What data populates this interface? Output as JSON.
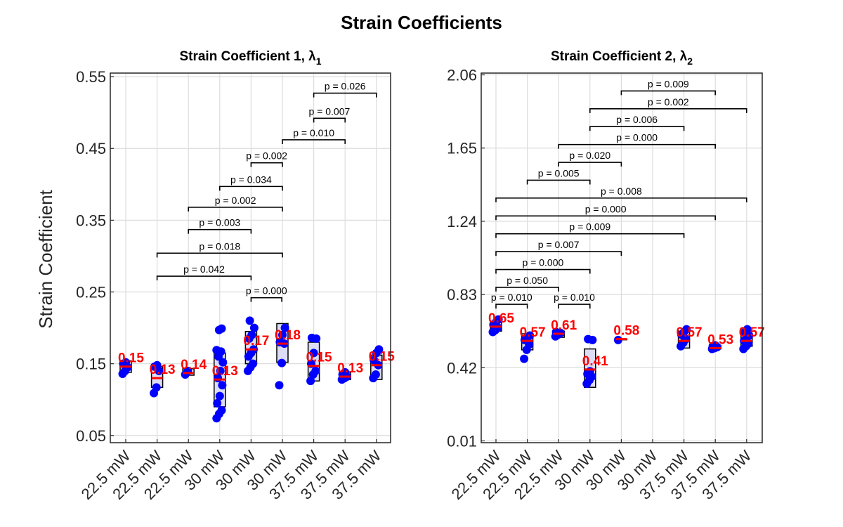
{
  "figure": {
    "title": "Strain Coefficients"
  },
  "chart_data": [
    {
      "type": "box",
      "title": "Strain Coefficient 1, λ",
      "title_subscript": "1",
      "ylabel": "Strain Coefficient",
      "ylim": [
        0.04,
        0.555
      ],
      "yticks": [
        0.05,
        0.15,
        0.25,
        0.35,
        0.45,
        0.55
      ],
      "ytick_labels": [
        "0.05",
        "0.15",
        "0.25",
        "0.35",
        "0.45",
        "0.55"
      ],
      "categories": [
        "22.5 mW",
        "22.5 mW",
        "22.5 mW",
        "30 mW",
        "30 mW",
        "30 mW",
        "37.5 mW",
        "37.5 mW",
        "37.5 mW"
      ],
      "grid": true,
      "groups": [
        {
          "q1": 0.138,
          "median": 0.146,
          "q3": 0.154,
          "label": "0.15",
          "points": [
            0.136,
            0.14,
            0.145,
            0.15,
            0.152
          ]
        },
        {
          "q1": 0.117,
          "median": 0.13,
          "q3": 0.146,
          "label": "0.13",
          "points": [
            0.109,
            0.117,
            0.14,
            0.146,
            0.148
          ]
        },
        {
          "q1": 0.134,
          "median": 0.137,
          "q3": 0.143,
          "label": "0.14",
          "points": [
            0.135,
            0.14
          ]
        },
        {
          "q1": 0.09,
          "median": 0.128,
          "q3": 0.165,
          "label": "0.13",
          "points": [
            0.074,
            0.08,
            0.085,
            0.095,
            0.105,
            0.12,
            0.13,
            0.14,
            0.152,
            0.16,
            0.167,
            0.169,
            0.197,
            0.199
          ]
        },
        {
          "q1": 0.15,
          "median": 0.17,
          "q3": 0.195,
          "label": "0.17",
          "points": [
            0.14,
            0.145,
            0.15,
            0.16,
            0.165,
            0.17,
            0.185,
            0.19,
            0.2,
            0.21
          ]
        },
        {
          "q1": 0.152,
          "median": 0.178,
          "q3": 0.206,
          "label": "0.18",
          "points": [
            0.12,
            0.151,
            0.178,
            0.18,
            0.19,
            0.2
          ]
        },
        {
          "q1": 0.126,
          "median": 0.147,
          "q3": 0.18,
          "label": "0.15",
          "points": [
            0.126,
            0.135,
            0.14,
            0.15,
            0.165,
            0.185,
            0.186
          ]
        },
        {
          "q1": 0.128,
          "median": 0.132,
          "q3": 0.138,
          "label": "0.13",
          "points": [
            0.128,
            0.13,
            0.132,
            0.135,
            0.138
          ]
        },
        {
          "q1": 0.128,
          "median": 0.148,
          "q3": 0.162,
          "label": "0.15",
          "points": [
            0.13,
            0.135,
            0.148,
            0.155,
            0.165,
            0.17
          ]
        }
      ],
      "comparisons": [
        {
          "from": 1,
          "to": 4,
          "y": 0.272,
          "label": "p = 0.042"
        },
        {
          "from": 1,
          "to": 5,
          "y": 0.304,
          "label": "p = 0.018"
        },
        {
          "from": 2,
          "to": 4,
          "y": 0.337,
          "label": "p = 0.003"
        },
        {
          "from": 2,
          "to": 5,
          "y": 0.368,
          "label": "p = 0.002"
        },
        {
          "from": 3,
          "to": 5,
          "y": 0.397,
          "label": "p = 0.034"
        },
        {
          "from": 4,
          "to": 5,
          "y": 0.43,
          "label": "p = 0.002"
        },
        {
          "from": 4,
          "to": 4,
          "y": 0.242,
          "label": "p = 0.000"
        },
        {
          "from": 5,
          "to": 7,
          "y": 0.462,
          "label": "p = 0.010"
        },
        {
          "from": 6,
          "to": 7,
          "y": 0.492,
          "label": "p = 0.007"
        },
        {
          "from": 6,
          "to": 8,
          "y": 0.527,
          "label": "p = 0.026"
        }
      ]
    },
    {
      "type": "box",
      "title": "Strain Coefficient 2, λ",
      "title_subscript": "2",
      "ylabel": "",
      "ylim": [
        0.0,
        2.07
      ],
      "yticks": [
        0.01,
        0.42,
        0.83,
        1.24,
        1.65,
        2.06
      ],
      "ytick_labels": [
        "0.01",
        "0.42",
        "0.83",
        "1.24",
        "1.65",
        "2.06"
      ],
      "categories": [
        "22.5 mW",
        "22.5 mW",
        "22.5 mW",
        "30 mW",
        "30 mW",
        "30 mW",
        "37.5 mW",
        "37.5 mW",
        "37.5 mW"
      ],
      "grid": true,
      "groups": [
        {
          "q1": 0.625,
          "median": 0.65,
          "q3": 0.68,
          "label": "0.65",
          "points": [
            0.62,
            0.63,
            0.645,
            0.66,
            0.675,
            0.69
          ]
        },
        {
          "q1": 0.52,
          "median": 0.57,
          "q3": 0.61,
          "label": "0.57",
          "points": [
            0.47,
            0.52,
            0.55,
            0.575,
            0.59,
            0.6
          ]
        },
        {
          "q1": 0.59,
          "median": 0.61,
          "q3": 0.625,
          "label": "0.61",
          "points": [
            0.595,
            0.605,
            0.615,
            0.62
          ]
        },
        {
          "q1": 0.31,
          "median": 0.41,
          "q3": 0.525,
          "label": "0.41",
          "points": [
            0.33,
            0.35,
            0.37,
            0.385,
            0.4,
            0.575,
            0.58
          ]
        },
        {
          "q1": 0.58,
          "median": 0.58,
          "q3": 0.58,
          "label": "0.58",
          "points": [
            0.575
          ]
        },
        {
          "q1": null,
          "median": null,
          "q3": null,
          "label": "",
          "points": []
        },
        {
          "q1": 0.53,
          "median": 0.57,
          "q3": 0.625,
          "label": "0.57",
          "points": [
            0.54,
            0.56,
            0.58,
            0.605,
            0.62,
            0.635
          ]
        },
        {
          "q1": 0.525,
          "median": 0.53,
          "q3": 0.545,
          "label": "0.53",
          "points": [
            0.525,
            0.53,
            0.535,
            0.54,
            0.545
          ]
        },
        {
          "q1": 0.54,
          "median": 0.57,
          "q3": 0.605,
          "label": "0.57",
          "points": [
            0.525,
            0.54,
            0.555,
            0.57,
            0.585,
            0.6,
            0.62,
            0.635
          ]
        }
      ],
      "comparisons": [
        {
          "from": 0,
          "to": 1,
          "y": 0.775,
          "label": "p = 0.010"
        },
        {
          "from": 2,
          "to": 3,
          "y": 0.775,
          "label": "p = 0.010"
        },
        {
          "from": 0,
          "to": 2,
          "y": 0.87,
          "label": "p = 0.050"
        },
        {
          "from": 0,
          "to": 3,
          "y": 0.97,
          "label": "p = 0.000"
        },
        {
          "from": 0,
          "to": 4,
          "y": 1.07,
          "label": "p = 0.007"
        },
        {
          "from": 0,
          "to": 6,
          "y": 1.17,
          "label": "p = 0.009"
        },
        {
          "from": 0,
          "to": 7,
          "y": 1.27,
          "label": "p = 0.000"
        },
        {
          "from": 0,
          "to": 8,
          "y": 1.37,
          "label": "p = 0.008"
        },
        {
          "from": 1,
          "to": 3,
          "y": 1.47,
          "label": "p = 0.005"
        },
        {
          "from": 2,
          "to": 4,
          "y": 1.57,
          "label": "p = 0.020"
        },
        {
          "from": 2,
          "to": 7,
          "y": 1.67,
          "label": "p = 0.000"
        },
        {
          "from": 3,
          "to": 6,
          "y": 1.77,
          "label": "p = 0.006"
        },
        {
          "from": 3,
          "to": 8,
          "y": 1.87,
          "label": "p = 0.002"
        },
        {
          "from": 4,
          "to": 7,
          "y": 1.97,
          "label": "p = 0.009"
        }
      ]
    }
  ]
}
